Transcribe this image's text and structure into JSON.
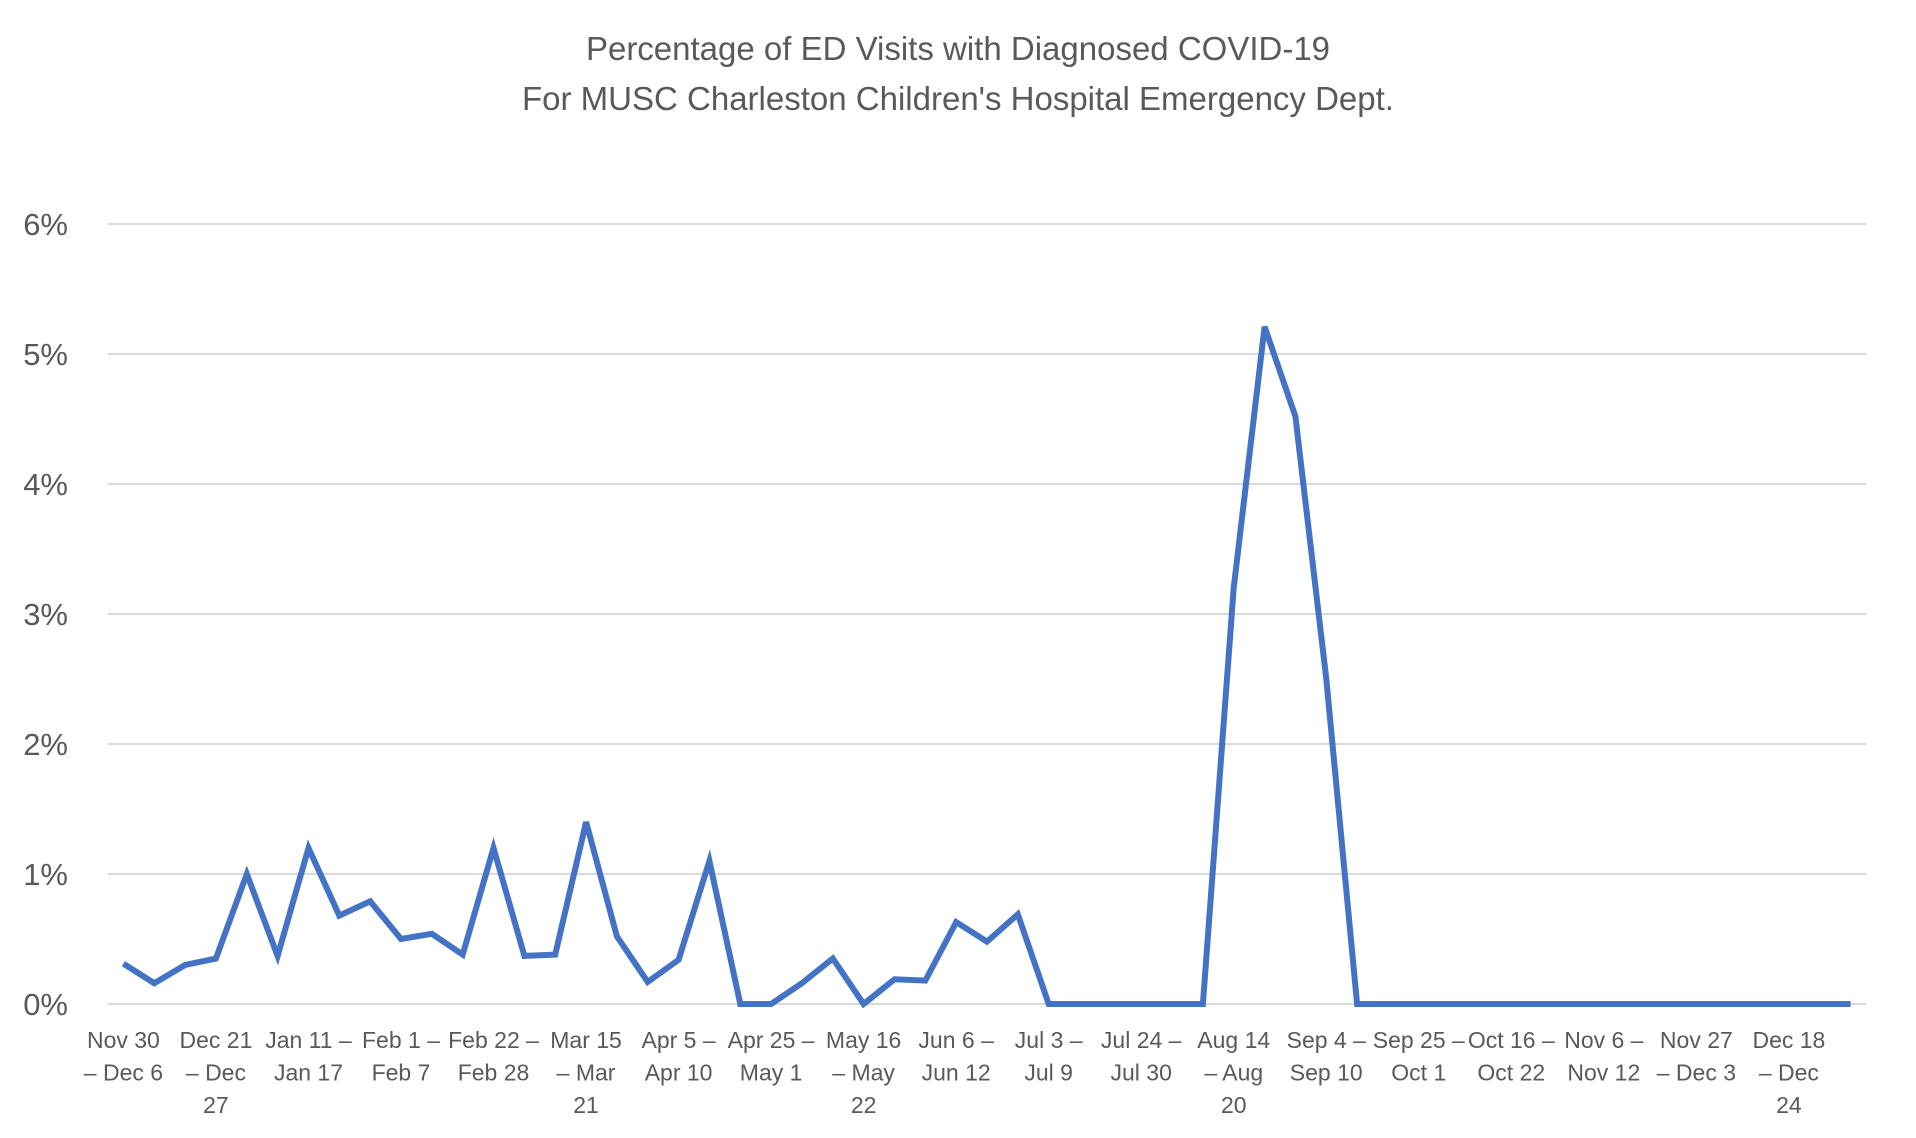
{
  "chart_data": {
    "type": "line",
    "title": "Percentage of ED Visits with Diagnosed COVID-19",
    "subtitle": "For MUSC Charleston Children's Hospital Emergency Dept.",
    "xlabel": "",
    "ylabel": "",
    "ylim": [
      0,
      6
    ],
    "yticks": [
      "0%",
      "1%",
      "2%",
      "3%",
      "4%",
      "5%",
      "6%"
    ],
    "grid": true,
    "legend": "none",
    "series_color": "#4472C4",
    "tick_labels": [
      {
        "index": 0,
        "lines": [
          "Nov 30",
          "– Dec 6"
        ]
      },
      {
        "index": 3,
        "lines": [
          "Dec 21",
          "– Dec",
          "27"
        ]
      },
      {
        "index": 6,
        "lines": [
          "Jan 11 –",
          "Jan 17"
        ]
      },
      {
        "index": 9,
        "lines": [
          "Feb 1 –",
          "Feb 7"
        ]
      },
      {
        "index": 12,
        "lines": [
          "Feb 22 –",
          "Feb 28"
        ]
      },
      {
        "index": 15,
        "lines": [
          "Mar 15",
          "– Mar",
          "21"
        ]
      },
      {
        "index": 18,
        "lines": [
          "Apr 5 –",
          "Apr 10"
        ]
      },
      {
        "index": 21,
        "lines": [
          "Apr 25 –",
          "May 1"
        ]
      },
      {
        "index": 24,
        "lines": [
          "May 16",
          "– May",
          "22"
        ]
      },
      {
        "index": 27,
        "lines": [
          "Jun 6 –",
          "Jun 12"
        ]
      },
      {
        "index": 30,
        "lines": [
          "Jul 3 –",
          "Jul 9"
        ]
      },
      {
        "index": 33,
        "lines": [
          "Jul 24 –",
          "Jul 30"
        ]
      },
      {
        "index": 36,
        "lines": [
          "Aug 14",
          "– Aug",
          "20"
        ]
      },
      {
        "index": 39,
        "lines": [
          "Sep 4 –",
          "Sep 10"
        ]
      },
      {
        "index": 42,
        "lines": [
          "Sep 25 –",
          "Oct 1"
        ]
      },
      {
        "index": 45,
        "lines": [
          "Oct 16 –",
          "Oct 22"
        ]
      },
      {
        "index": 48,
        "lines": [
          "Nov 6 –",
          "Nov 12"
        ]
      },
      {
        "index": 51,
        "lines": [
          "Nov 27",
          "– Dec 3"
        ]
      },
      {
        "index": 54,
        "lines": [
          "Dec 18",
          "– Dec",
          "24"
        ]
      }
    ],
    "categories_count": 57,
    "series": [
      {
        "name": "Percentage of ED Visits with Diagnosed COVID-19",
        "values": [
          0.31,
          0.16,
          0.3,
          0.35,
          1.0,
          0.37,
          1.2,
          0.68,
          0.79,
          0.5,
          0.54,
          0.38,
          1.2,
          0.37,
          0.38,
          1.4,
          0.52,
          0.17,
          0.34,
          1.1,
          0.0,
          0.0,
          0.16,
          0.35,
          0.0,
          0.19,
          0.18,
          0.63,
          0.48,
          0.69,
          0.0,
          0.0,
          0.0,
          0.0,
          0.0,
          0.0,
          3.2,
          5.21,
          4.52,
          2.5,
          0.0,
          0.0,
          0.0,
          0.0,
          0.0,
          0.0,
          0.0,
          0.0,
          0.0,
          0.0,
          0.0,
          0.0,
          0.0,
          0.0,
          0.0,
          0.0,
          0.0
        ]
      }
    ]
  }
}
